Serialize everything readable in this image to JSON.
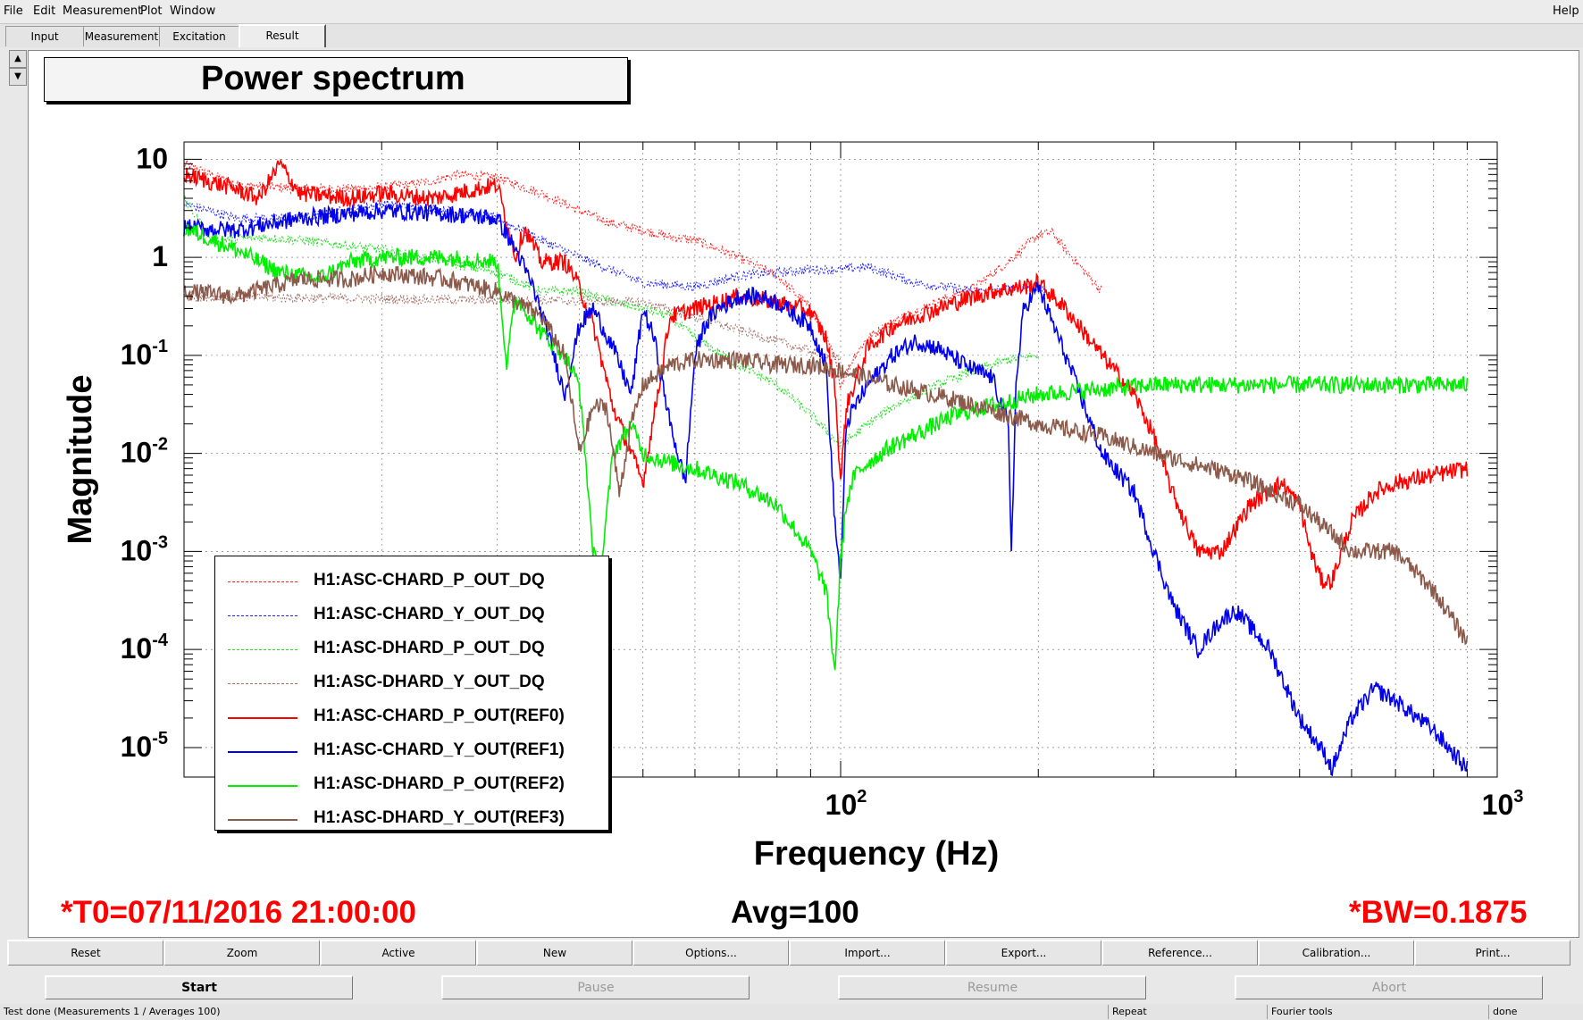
{
  "menubar": {
    "items": [
      "File",
      "Edit",
      "Measurement",
      "Plot",
      "Window"
    ],
    "help": "Help"
  },
  "tabs": [
    {
      "label": "Input",
      "active": false
    },
    {
      "label": "Measurement",
      "active": false
    },
    {
      "label": "Excitation",
      "active": false
    },
    {
      "label": "Result",
      "active": true
    }
  ],
  "plot": {
    "title": "Power spectrum",
    "t0": "*T0=07/11/2016 21:00:00",
    "avg": "Avg=100",
    "bw": "*BW=0.1875"
  },
  "chart_data": {
    "type": "line",
    "title": "Power spectrum",
    "xlabel": "Frequency (Hz)",
    "ylabel": "Magnitude",
    "xscale": "log",
    "yscale": "log",
    "xlim": [
      10,
      1000
    ],
    "ylim": [
      5e-06,
      15
    ],
    "x_ticks": [
      {
        "value": 100,
        "label": "10",
        "exp": "2"
      },
      {
        "value": 1000,
        "label": "10",
        "exp": "3"
      }
    ],
    "y_ticks": [
      {
        "value": 10,
        "label": "10",
        "exp": ""
      },
      {
        "value": 1,
        "label": "1",
        "exp": ""
      },
      {
        "value": 0.1,
        "label": "10",
        "exp": "-1"
      },
      {
        "value": 0.01,
        "label": "10",
        "exp": "-2"
      },
      {
        "value": 0.001,
        "label": "10",
        "exp": "-3"
      },
      {
        "value": 0.0001,
        "label": "10",
        "exp": "-4"
      },
      {
        "value": 1e-05,
        "label": "10",
        "exp": "-5"
      }
    ],
    "grid": true,
    "legend": "bottom-left",
    "series": [
      {
        "name": "H1:ASC-CHARD_P_OUT_DQ",
        "color": "#ff2020",
        "style": "dashed",
        "x": [
          10,
          12,
          15,
          18,
          20,
          22,
          24,
          26,
          30,
          35,
          40,
          45,
          50,
          55,
          60,
          70,
          80,
          90,
          95,
          98,
          100,
          105,
          110,
          120,
          140,
          160,
          180,
          200,
          210,
          220,
          250
        ],
        "y": [
          9,
          5.5,
          5,
          5,
          5.2,
          5.5,
          6,
          7,
          6.5,
          4.5,
          3,
          2.2,
          1.9,
          1.6,
          1.5,
          1.0,
          0.65,
          0.3,
          0.15,
          0.09,
          0.05,
          0.1,
          0.15,
          0.22,
          0.35,
          0.5,
          0.9,
          1.7,
          1.8,
          1.2,
          0.45
        ]
      },
      {
        "name": "H1:ASC-CHARD_Y_OUT_DQ",
        "color": "#2020ff",
        "style": "dashed",
        "x": [
          10,
          12,
          15,
          20,
          25,
          30,
          35,
          40,
          50,
          60,
          70,
          80,
          90,
          100,
          110,
          130,
          160,
          200,
          210
        ],
        "y": [
          3.5,
          2.5,
          2.5,
          3.5,
          3,
          2.5,
          1.5,
          1,
          0.55,
          0.5,
          0.65,
          0.7,
          0.75,
          0.75,
          0.8,
          0.55,
          0.45,
          0.5,
          0.4
        ]
      },
      {
        "name": "H1:ASC-DHARD_P_OUT_DQ",
        "color": "#20dd20",
        "style": "dashed",
        "x": [
          10,
          11,
          13,
          15,
          20,
          25,
          30,
          35,
          40,
          45,
          50,
          55,
          60,
          70,
          80,
          90,
          100,
          110,
          120,
          140,
          160,
          180,
          200
        ],
        "y": [
          4,
          1.5,
          1.6,
          1.5,
          1.2,
          0.9,
          0.7,
          0.45,
          0.45,
          0.35,
          0.3,
          0.25,
          0.15,
          0.08,
          0.05,
          0.025,
          0.012,
          0.02,
          0.03,
          0.05,
          0.07,
          0.09,
          0.1
        ]
      },
      {
        "name": "H1:ASC-DHARD_Y_OUT_DQ",
        "color": "#a0706a",
        "style": "dashed",
        "x": [
          10,
          50,
          100
        ],
        "y": [
          0.4,
          0.35,
          0.09
        ]
      },
      {
        "name": "H1:ASC-CHARD_P_OUT(REF0)",
        "color": "#ff0000",
        "style": "solid",
        "x": [
          10,
          12,
          13,
          14,
          15,
          18,
          20,
          22,
          24,
          26,
          28,
          30,
          32,
          33,
          35,
          37,
          38,
          39,
          40,
          42,
          45,
          50,
          55,
          60,
          70,
          80,
          90,
          95,
          98,
          100,
          102,
          105,
          110,
          120,
          130,
          150,
          170,
          190,
          200,
          220,
          250,
          280,
          300,
          320,
          350,
          380,
          420,
          470,
          500,
          520,
          540,
          560,
          600,
          650,
          700,
          800,
          900
        ],
        "y": [
          7,
          5,
          4,
          9,
          4.5,
          4,
          4.5,
          4.2,
          4,
          4.5,
          5,
          5.5,
          1,
          2,
          0.9,
          0.9,
          0.9,
          0.7,
          0.5,
          0.2,
          0.03,
          0.005,
          0.25,
          0.3,
          0.4,
          0.35,
          0.28,
          0.15,
          0.05,
          0.005,
          0.03,
          0.05,
          0.12,
          0.2,
          0.25,
          0.35,
          0.45,
          0.5,
          0.55,
          0.3,
          0.1,
          0.04,
          0.015,
          0.004,
          0.001,
          0.001,
          0.003,
          0.005,
          0.003,
          0.001,
          0.0005,
          0.0005,
          0.002,
          0.004,
          0.005,
          0.006,
          0.007
        ]
      },
      {
        "name": "H1:ASC-CHARD_Y_OUT(REF1)",
        "color": "#0000ee",
        "style": "solid",
        "x": [
          10,
          12,
          15,
          20,
          25,
          30,
          32,
          34,
          36,
          38,
          40,
          42,
          45,
          48,
          50,
          52,
          55,
          58,
          60,
          62,
          65,
          68,
          70,
          75,
          80,
          90,
          95,
          98,
          100,
          102,
          105,
          110,
          120,
          130,
          140,
          150,
          160,
          170,
          180,
          182,
          185,
          190,
          200,
          220,
          250,
          280,
          300,
          320,
          350,
          380,
          400,
          450,
          500,
          550,
          560,
          600,
          650,
          700,
          800,
          900
        ],
        "y": [
          2,
          1.9,
          2.5,
          3,
          2.8,
          2.5,
          1.2,
          0.5,
          0.15,
          0.04,
          0.2,
          0.3,
          0.12,
          0.04,
          0.3,
          0.15,
          0.02,
          0.005,
          0.1,
          0.2,
          0.3,
          0.35,
          0.4,
          0.4,
          0.35,
          0.2,
          0.08,
          0.002,
          0.0005,
          0.02,
          0.03,
          0.05,
          0.1,
          0.14,
          0.12,
          0.09,
          0.07,
          0.06,
          0.02,
          0.001,
          0.05,
          0.3,
          0.5,
          0.1,
          0.01,
          0.004,
          0.001,
          0.0003,
          0.0001,
          0.0002,
          0.00025,
          0.0001,
          2e-05,
          8e-06,
          6e-06,
          2e-05,
          4e-05,
          3e-05,
          1.5e-05,
          6e-06
        ]
      },
      {
        "name": "H1:ASC-DHARD_P_OUT(REF2)",
        "color": "#00ee00",
        "style": "solid",
        "x": [
          10,
          12,
          14,
          16,
          18,
          20,
          25,
          30,
          31,
          32,
          33,
          35,
          38,
          40,
          42,
          43,
          45,
          48,
          50,
          55,
          60,
          70,
          80,
          90,
          95,
          98,
          100,
          102,
          105,
          110,
          120,
          150,
          200,
          300,
          400,
          500,
          600,
          700,
          800,
          900
        ],
        "y": [
          2,
          1.2,
          0.7,
          0.6,
          0.9,
          1,
          1,
          0.9,
          0.08,
          0.4,
          0.3,
          0.17,
          0.1,
          0.05,
          0.001,
          0.0005,
          0.01,
          0.02,
          0.01,
          0.008,
          0.007,
          0.005,
          0.003,
          0.001,
          0.0004,
          6e-05,
          0.0008,
          0.003,
          0.006,
          0.008,
          0.012,
          0.025,
          0.04,
          0.05,
          0.05,
          0.05,
          0.05,
          0.05,
          0.05,
          0.05
        ]
      },
      {
        "name": "H1:ASC-DHARD_Y_OUT(REF3)",
        "color": "#8b5a4a",
        "style": "solid",
        "x": [
          10,
          12,
          15,
          18,
          20,
          25,
          30,
          35,
          38,
          40,
          42,
          44,
          46,
          48,
          50,
          55,
          60,
          70,
          80,
          90,
          100,
          120,
          150,
          200,
          250,
          300,
          400,
          500,
          600,
          700,
          800,
          900
        ],
        "y": [
          0.45,
          0.4,
          0.6,
          0.6,
          0.7,
          0.6,
          0.45,
          0.25,
          0.1,
          0.01,
          0.03,
          0.03,
          0.004,
          0.02,
          0.05,
          0.08,
          0.09,
          0.09,
          0.08,
          0.08,
          0.07,
          0.05,
          0.035,
          0.02,
          0.015,
          0.01,
          0.006,
          0.003,
          0.001,
          0.001,
          0.0004,
          0.00012
        ]
      }
    ]
  },
  "buttons_row1": [
    "Reset",
    "Zoom",
    "Active",
    "New",
    "Options...",
    "Import...",
    "Export...",
    "Reference...",
    "Calibration...",
    "Print..."
  ],
  "buttons_row2": [
    {
      "label": "Start",
      "enabled": true
    },
    {
      "label": "Pause",
      "enabled": false
    },
    {
      "label": "Resume",
      "enabled": false
    },
    {
      "label": "Abort",
      "enabled": false
    }
  ],
  "status": {
    "message": "Test done (Measurements 1 / Averages 100)",
    "mode": "Repeat",
    "tool": "Fourier tools",
    "state": "done"
  }
}
